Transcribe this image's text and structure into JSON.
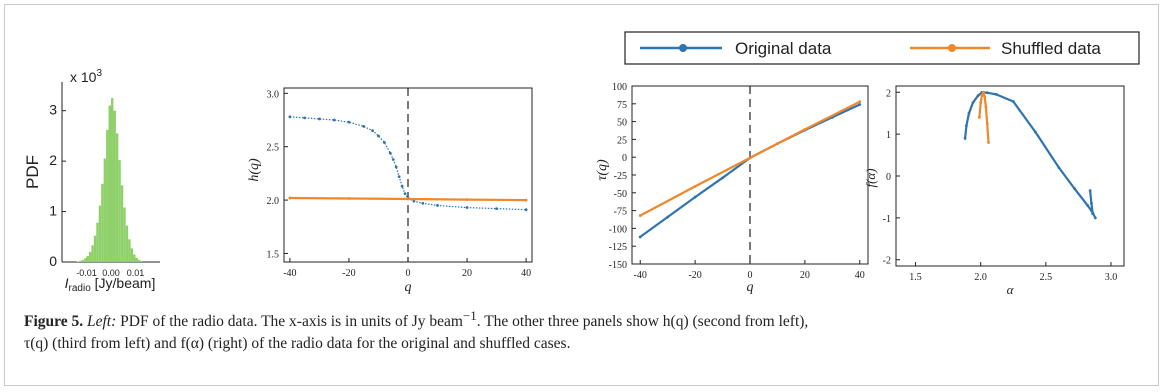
{
  "figure": {
    "label": "Figure 5.",
    "caption_lines": [
      {
        "italic_lead": "Left:",
        "text": " PDF of the radio data. The x-axis is in units of Jy beam",
        "sup": "−1",
        "tail": ". The other three panels show h(q) (second from left),"
      },
      {
        "text": "τ(q) (third from left) and f(α) (right) of the radio data for the original and shuffled cases."
      }
    ]
  },
  "legend": {
    "items": [
      {
        "label": "Original data",
        "color": "#2e74b0"
      },
      {
        "label": "Shuffled data",
        "color": "#f0882a"
      }
    ]
  },
  "chart_data": [
    {
      "type": "bar",
      "panel": "pdf",
      "ylabel": "PDF",
      "xlabel_main": "I",
      "xlabel_sub": "radio",
      "xlabel_unit": " [Jy/beam]",
      "scale_label_base": "x 10",
      "scale_label_exp": "3",
      "xticks": [
        "-0.01",
        "0.00",
        "0.01"
      ],
      "xtick_values": [
        -0.01,
        0.0,
        0.01
      ],
      "yticks": [
        "0",
        "1",
        "2",
        "3"
      ],
      "ytick_values": [
        0,
        1,
        2,
        3
      ],
      "xlim": [
        -0.02,
        0.02
      ],
      "ylim": [
        0,
        3.45
      ],
      "color": "#8fd06a",
      "bin_centers": [
        -0.0135,
        -0.0125,
        -0.0115,
        -0.0105,
        -0.0095,
        -0.0085,
        -0.0075,
        -0.0065,
        -0.0055,
        -0.0045,
        -0.0035,
        -0.0025,
        -0.0015,
        -0.0005,
        0.0005,
        0.0015,
        0.0025,
        0.0035,
        0.0045,
        0.0055,
        0.0065,
        0.0075,
        0.0085,
        0.0095,
        0.0105,
        0.0115,
        0.0125
      ],
      "values": [
        0.01,
        0.02,
        0.04,
        0.07,
        0.12,
        0.2,
        0.33,
        0.52,
        0.78,
        1.12,
        1.55,
        2.05,
        2.62,
        3.1,
        3.25,
        3.0,
        2.55,
        2.02,
        1.52,
        1.08,
        0.72,
        0.45,
        0.27,
        0.15,
        0.08,
        0.04,
        0.02
      ]
    },
    {
      "type": "line",
      "panel": "h(q)",
      "ylabel": "h(q)",
      "xlabel": "q",
      "xticks": [
        "-40",
        "-20",
        "0",
        "20",
        "40"
      ],
      "xtick_values": [
        -40,
        -20,
        0,
        20,
        40
      ],
      "yticks": [
        "1.5",
        "2.0",
        "2.5",
        "3.0"
      ],
      "ytick_values": [
        1.5,
        2.0,
        2.5,
        3.0
      ],
      "xlim": [
        -42,
        42
      ],
      "ylim": [
        1.42,
        3.05
      ],
      "vline_x": 0,
      "series": [
        {
          "name": "Original data",
          "color": "#2e74b0",
          "x": [
            -40,
            -35,
            -30,
            -25,
            -20,
            -15,
            -12,
            -10,
            -8,
            -6,
            -5,
            -4,
            -3,
            -2,
            -1,
            0,
            2,
            5,
            10,
            20,
            30,
            40
          ],
          "y": [
            2.78,
            2.77,
            2.76,
            2.75,
            2.73,
            2.69,
            2.65,
            2.6,
            2.54,
            2.44,
            2.38,
            2.31,
            2.22,
            2.13,
            2.06,
            2.02,
            1.99,
            1.97,
            1.95,
            1.93,
            1.92,
            1.91
          ]
        },
        {
          "name": "Shuffled data",
          "color": "#f0882a",
          "x": [
            -40,
            -20,
            0,
            20,
            40
          ],
          "y": [
            2.02,
            2.015,
            2.01,
            2.005,
            2.0
          ]
        }
      ]
    },
    {
      "type": "line",
      "panel": "tau(q)",
      "ylabel": "τ(q)",
      "xlabel": "q",
      "xticks": [
        "-40",
        "-20",
        "0",
        "20",
        "40"
      ],
      "xtick_values": [
        -40,
        -20,
        0,
        20,
        40
      ],
      "yticks": [
        "100",
        "75",
        "50",
        "25",
        "0",
        "-25",
        "-50",
        "-75",
        "-100",
        "-125",
        "-150"
      ],
      "ytick_values": [
        100,
        75,
        50,
        25,
        0,
        -25,
        -50,
        -75,
        -100,
        -125,
        -150
      ],
      "xlim": [
        -43,
        43
      ],
      "ylim": [
        -150,
        100
      ],
      "vline_x": 0,
      "series": [
        {
          "name": "Original data",
          "color": "#2e74b0",
          "x": [
            -40,
            -30,
            -20,
            -10,
            0,
            10,
            20,
            30,
            40
          ],
          "y": [
            -112,
            -84,
            -56,
            -29,
            -1,
            19,
            38,
            56,
            74
          ]
        },
        {
          "name": "Shuffled data",
          "color": "#f0882a",
          "x": [
            -40,
            -20,
            0,
            20,
            40
          ],
          "y": [
            -82,
            -41,
            -1,
            39,
            78
          ]
        }
      ]
    },
    {
      "type": "line",
      "panel": "f(alpha)",
      "ylabel": "f(α)",
      "xlabel": "α",
      "xticks": [
        "1.5",
        "2.0",
        "2.5",
        "3.0"
      ],
      "xtick_values": [
        1.5,
        2.0,
        2.5,
        3.0
      ],
      "yticks": [
        "2",
        "1",
        "0",
        "-1",
        "-2"
      ],
      "ytick_values": [
        2,
        1,
        0,
        -1,
        -2
      ],
      "xlim": [
        1.35,
        3.1
      ],
      "ylim": [
        -2.15,
        2.15
      ],
      "series": [
        {
          "name": "Original data",
          "color": "#2e74b0",
          "x": [
            1.88,
            1.89,
            1.91,
            1.94,
            1.98,
            2.01,
            2.05,
            2.12,
            2.25,
            2.42,
            2.6,
            2.72,
            2.82,
            2.86,
            2.88
          ],
          "y": [
            0.9,
            1.2,
            1.5,
            1.75,
            1.92,
            2.0,
            1.99,
            1.95,
            1.78,
            1.05,
            0.2,
            -0.3,
            -0.7,
            -0.88,
            -1.0
          ]
        },
        {
          "name": "Original data (tail)",
          "color": "#2e74b0",
          "x": [
            2.84,
            2.85,
            2.86
          ],
          "y": [
            -0.35,
            -0.65,
            -0.9
          ]
        },
        {
          "name": "Shuffled data (left)",
          "color": "#f0882a",
          "x": [
            1.99,
            2.0,
            2.01,
            2.02
          ],
          "y": [
            1.4,
            1.75,
            1.93,
            2.0
          ]
        },
        {
          "name": "Shuffled data (right)",
          "color": "#f0882a",
          "x": [
            2.02,
            2.03,
            2.04,
            2.05,
            2.06
          ],
          "y": [
            2.0,
            1.9,
            1.65,
            1.25,
            0.8
          ]
        }
      ]
    }
  ]
}
